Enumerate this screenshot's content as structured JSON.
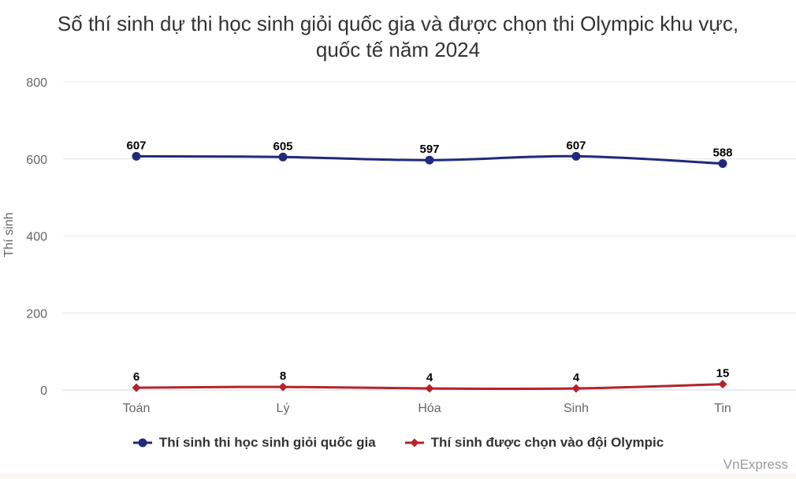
{
  "chart_data": {
    "type": "line",
    "title": "Số thí sinh dự thi học sinh giỏi quốc gia và được chọn thi Olympic khu vực,",
    "subtitle": "quốc tế năm 2024",
    "ylabel": "Thí sinh",
    "xlabel": "",
    "categories": [
      "Toán",
      "Lý",
      "Hóa",
      "Sinh",
      "Tin"
    ],
    "ylim": [
      0,
      800
    ],
    "yticks": [
      0,
      200,
      400,
      600,
      800
    ],
    "grid": true,
    "legend_position": "bottom",
    "series": [
      {
        "name": "Thí sinh thi học sinh giỏi quốc gia",
        "values": [
          607,
          605,
          597,
          607,
          588
        ],
        "color": "#1f2a7a",
        "marker": "circle"
      },
      {
        "name": "Thí sinh được chọn vào đội Olympic",
        "values": [
          6,
          8,
          4,
          4,
          15
        ],
        "color": "#b5232b",
        "marker": "diamond"
      }
    ]
  },
  "credit": "VnExpress"
}
